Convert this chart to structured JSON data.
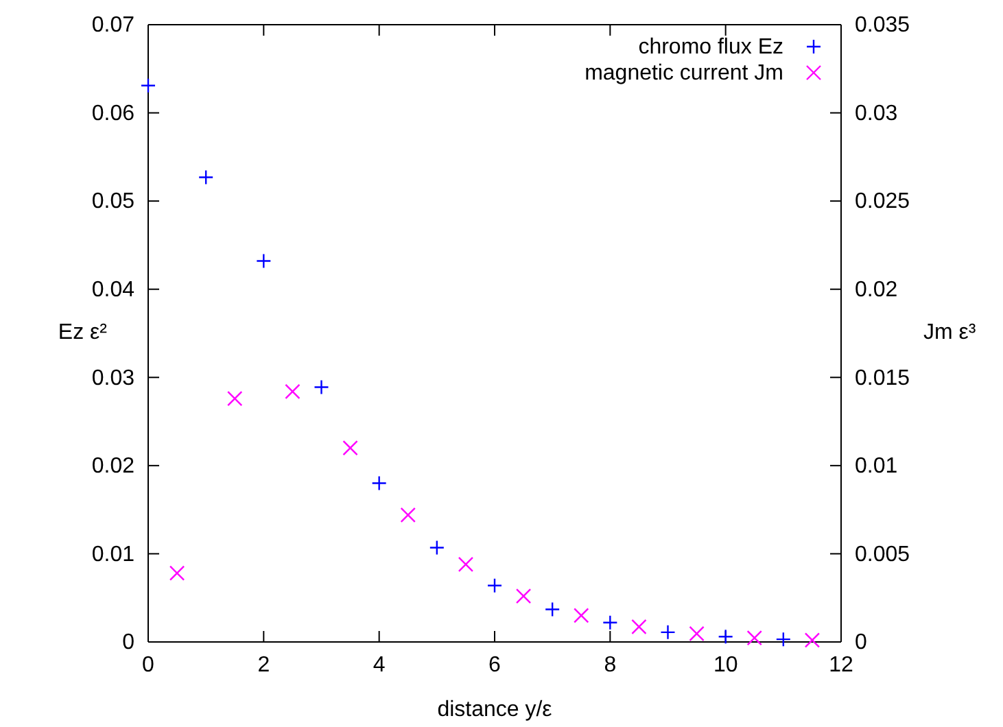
{
  "chart_data": {
    "type": "scatter",
    "xlabel": "distance y/ε",
    "ylabel": "Ez ε²",
    "y2label": "Jm ε³",
    "xlim": [
      0,
      12
    ],
    "xticks": [
      0,
      2,
      4,
      6,
      8,
      10,
      12
    ],
    "ylim": [
      0,
      0.07
    ],
    "yticks": [
      0,
      0.01,
      0.02,
      0.03,
      0.04,
      0.05,
      0.06,
      0.07
    ],
    "y2lim": [
      0,
      0.035
    ],
    "y2ticks": [
      0,
      0.005,
      0.01,
      0.015,
      0.02,
      0.025,
      0.03,
      0.035
    ],
    "legend": "top right",
    "grid": false,
    "series": [
      {
        "name": "chromo flux Ez",
        "color": "#0000ff",
        "marker": "cross",
        "x": [
          0,
          1,
          2,
          3,
          4,
          5,
          6,
          7,
          8,
          9,
          10,
          11
        ],
        "values": [
          0.0631,
          0.0527,
          0.0432,
          0.0289,
          0.018,
          0.0107,
          0.0064,
          0.0037,
          0.0022,
          0.0011,
          0.0006,
          0.0003
        ]
      },
      {
        "name": "magnetic current Jm",
        "color": "#ff00ff",
        "marker": "x",
        "axis": "y2",
        "x": [
          0.5,
          1.5,
          2.5,
          3.5,
          4.5,
          5.5,
          6.5,
          7.5,
          8.5,
          9.5,
          10.5,
          11.5
        ],
        "values": [
          0.0039,
          0.0138,
          0.0142,
          0.011,
          0.0072,
          0.0044,
          0.0026,
          0.0015,
          0.00086,
          0.00047,
          0.00023,
          0.0001
        ]
      }
    ]
  }
}
